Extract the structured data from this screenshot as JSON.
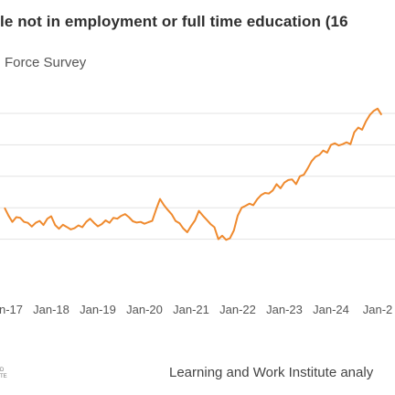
{
  "header": {
    "title": "le not in employment or full time education (16",
    "subtitle": "Force Survey"
  },
  "footer": {
    "source": "Learning and Work Institute analy",
    "logo_text": "D\nTE"
  },
  "colors": {
    "line": "#ef8a2e",
    "grid": "#e3e3e3",
    "tick_text": "#555555"
  },
  "chart_data": {
    "type": "line",
    "title": "le not in employment or full time education (16",
    "xlabel": "",
    "ylabel": "",
    "grid": true,
    "x_tick_labels": [
      "n-17",
      "Jan-18",
      "Jan-19",
      "Jan-20",
      "Jan-21",
      "Jan-22",
      "Jan-23",
      "Jan-24",
      "Jan-2"
    ],
    "x_ticks": [
      "2017-01",
      "2018-01",
      "2019-01",
      "2020-01",
      "2021-01",
      "2022-01",
      "2023-01",
      "2024-01",
      "2025-01"
    ],
    "series": [
      {
        "x": [
          "2017-01",
          "2017-02",
          "2017-03",
          "2017-04",
          "2017-05",
          "2017-06",
          "2017-07",
          "2017-08",
          "2017-09",
          "2017-10",
          "2017-11",
          "2017-12",
          "2018-01",
          "2018-02",
          "2018-03",
          "2018-04",
          "2018-05",
          "2018-06",
          "2018-07",
          "2018-08",
          "2018-09",
          "2018-10",
          "2018-11",
          "2018-12",
          "2019-01",
          "2019-02",
          "2019-03",
          "2019-04",
          "2019-05",
          "2019-06",
          "2019-07",
          "2019-08",
          "2019-09",
          "2019-10",
          "2019-11",
          "2019-12",
          "2020-01",
          "2020-02",
          "2020-03",
          "2020-04",
          "2020-05",
          "2020-06",
          "2020-07",
          "2020-08",
          "2020-09",
          "2020-10",
          "2020-11",
          "2020-12",
          "2021-01",
          "2021-02",
          "2021-03",
          "2021-04",
          "2021-05",
          "2021-06",
          "2021-07",
          "2021-08",
          "2021-09",
          "2021-10",
          "2021-11",
          "2021-12",
          "2022-01",
          "2022-02",
          "2022-03",
          "2022-04",
          "2022-05",
          "2022-06",
          "2022-07",
          "2022-08",
          "2022-09",
          "2022-10",
          "2022-11",
          "2022-12",
          "2023-01",
          "2023-02",
          "2023-03",
          "2023-04",
          "2023-05",
          "2023-06",
          "2023-07",
          "2023-08",
          "2023-09",
          "2023-10",
          "2023-11",
          "2023-12",
          "2024-01",
          "2024-02",
          "2024-03",
          "2024-04",
          "2024-05",
          "2024-06",
          "2024-07",
          "2024-08",
          "2024-09",
          "2024-10",
          "2024-11",
          "2024-12",
          "2025-01",
          "2025-02"
        ],
        "values": [
          800,
          775,
          755,
          770,
          768,
          755,
          752,
          740,
          752,
          758,
          745,
          765,
          773,
          745,
          733,
          746,
          739,
          731,
          735,
          744,
          738,
          755,
          765,
          752,
          741,
          748,
          760,
          752,
          768,
          765,
          774,
          780,
          770,
          757,
          753,
          755,
          749,
          754,
          758,
          795,
          828,
          808,
          793,
          779,
          758,
          751,
          734,
          722,
          742,
          760,
          790,
          775,
          762,
          748,
          738,
          700,
          711,
          698,
          703,
          728,
          775,
          800,
          806,
          813,
          808,
          827,
          840,
          847,
          845,
          855,
          875,
          862,
          880,
          888,
          890,
          875,
          900,
          905,
          925,
          948,
          962,
          968,
          982,
          975,
          1000,
          1005,
          998,
          1002,
          1008,
          1002,
          1040,
          1055,
          1048,
          1075,
          1095,
          1108,
          1115,
          1095
        ]
      }
    ]
  }
}
